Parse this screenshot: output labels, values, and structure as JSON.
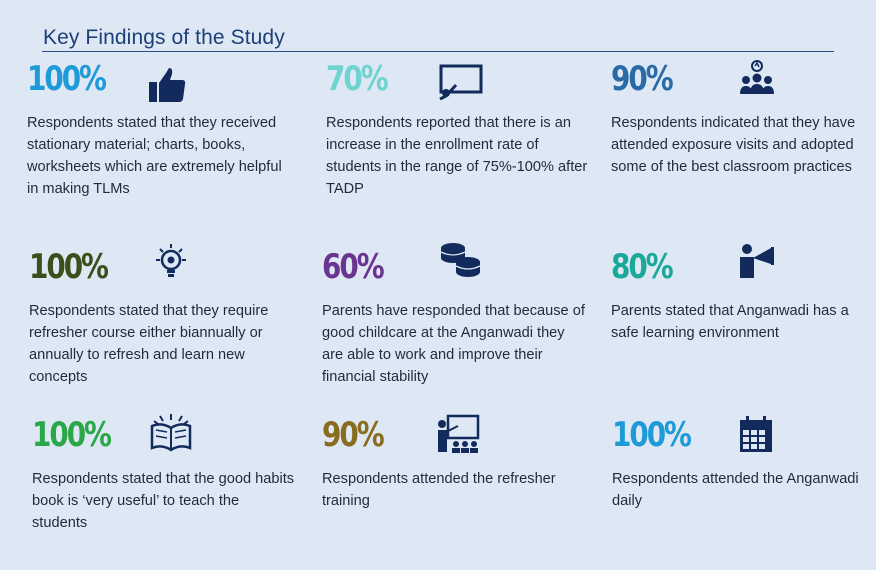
{
  "title": "Key Findings of the Study",
  "colors": {
    "navy": "#1d3f78",
    "icon": "#132b5c",
    "cyan": "#1e9ad8",
    "teal_light": "#6fd3cf",
    "steel_blue": "#2a6aa6",
    "olive_dark": "#3a4f1c",
    "purple": "#6a3591",
    "teal": "#1aa89a",
    "green": "#2aa748",
    "gold": "#8a6c1e"
  },
  "findings": [
    {
      "percent": "100%",
      "icon": "thumbs-up-icon",
      "text": "Respondents stated that they received stationary material; charts, books, worksheets which are extremely helpful in making TLMs"
    },
    {
      "percent": "70%",
      "icon": "presentation-board-icon",
      "text": "Respondents reported that there is an increase in the enrollment rate of students in the range of 75%-100% after TADP"
    },
    {
      "percent": "90%",
      "icon": "group-idea-icon",
      "text": "Respondents indicated that they have attended exposure visits and adopted some of the best classroom practices"
    },
    {
      "percent": "100%",
      "icon": "lightbulb-gear-icon",
      "text": "Respondents stated that they require refresher course either biannually or annually to refresh and learn new concepts"
    },
    {
      "percent": "60%",
      "icon": "coins-stack-icon",
      "text": "Parents have responded that because of good childcare at the Anganwadi they are able to work and improve their financial stability"
    },
    {
      "percent": "80%",
      "icon": "megaphone-person-icon",
      "text": "Parents stated that Anganwadi has a safe learning environment"
    },
    {
      "percent": "100%",
      "icon": "open-book-icon",
      "text": "Respondents stated that the good habits book is ‘very useful’ to teach the students"
    },
    {
      "percent": "90%",
      "icon": "teacher-class-icon",
      "text": "Respondents attended the refresher training"
    },
    {
      "percent": "100%",
      "icon": "calendar-icon",
      "text": "Respondents attended the Anganwadi daily"
    }
  ]
}
